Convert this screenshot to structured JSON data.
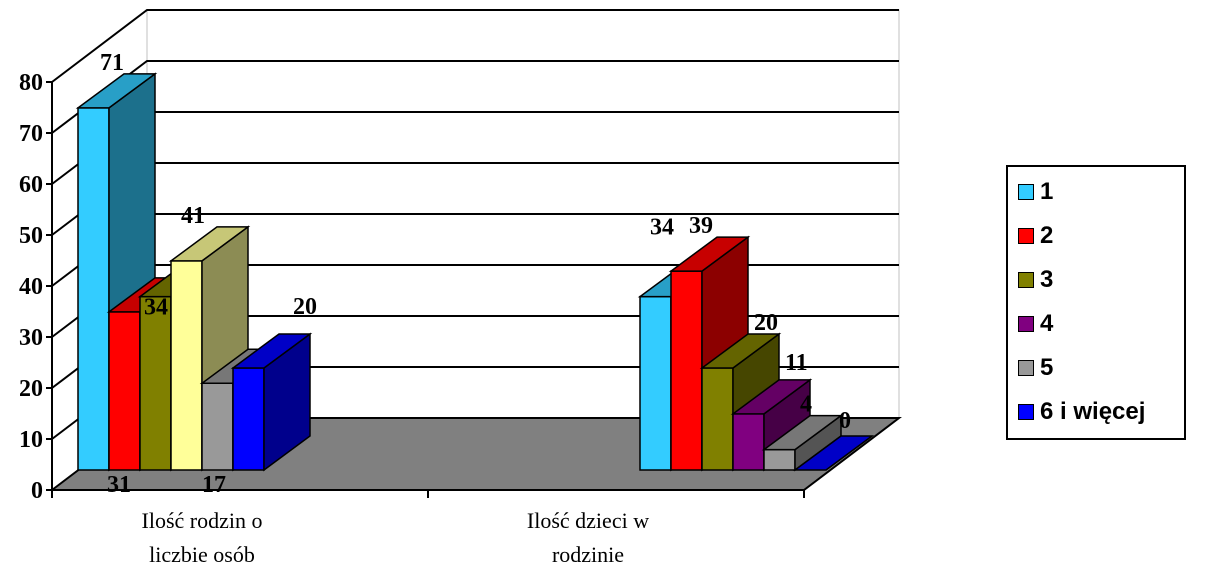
{
  "chart_data": {
    "type": "bar",
    "categories": [
      "Ilość rodzin o liczbie osób",
      "Ilość dzieci w rodzinie"
    ],
    "category_lines": [
      [
        "Ilość rodzin o",
        "liczbie osób"
      ],
      [
        "Ilość dzieci w",
        "rodzinie"
      ]
    ],
    "series": [
      {
        "name": "1",
        "values": [
          71,
          34
        ],
        "color": "#33CCFF"
      },
      {
        "name": "2",
        "values": [
          31,
          39
        ],
        "color": "#FF0000"
      },
      {
        "name": "3",
        "values": [
          34,
          20
        ],
        "color": "#808000"
      },
      {
        "name": "4",
        "values": [
          41,
          11
        ],
        "color": "#FFFF99"
      },
      {
        "name": "5",
        "values": [
          17,
          4
        ],
        "color": "#999999"
      },
      {
        "name": "6 i więcej",
        "values": [
          20,
          0
        ],
        "color": "#0000FF"
      }
    ],
    "series_colors_by_category": [
      [
        "#33CCFF",
        "#FF0000",
        "#808000",
        "#FFFF99",
        "#999999",
        "#0000FF"
      ],
      [
        "#33CCFF",
        "#FF0000",
        "#808000",
        "#800080",
        "#999999",
        "#0000FF"
      ]
    ],
    "legend_colors": [
      "#33CCFF",
      "#FF0000",
      "#808000",
      "#800080",
      "#999999",
      "#0000FF"
    ],
    "ylim": [
      0,
      80
    ],
    "yticks": [
      0,
      10,
      20,
      30,
      40,
      50,
      60,
      70,
      80
    ],
    "grid": true,
    "three_d": true,
    "legend_position": "right",
    "title": "",
    "xlabel": "",
    "ylabel": ""
  }
}
